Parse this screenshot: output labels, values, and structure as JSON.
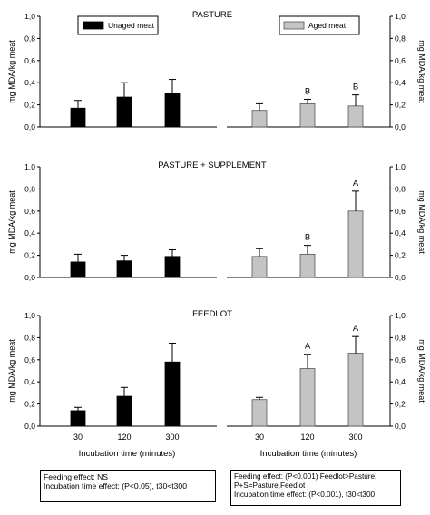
{
  "chart_data": {
    "type": "bar",
    "categories": [
      "30",
      "120",
      "300"
    ],
    "xlabel": "Incubation time (minutes)",
    "ylabel": "mg MDA/kg meat",
    "ylim": [
      0,
      1.0
    ],
    "yticks": [
      "0,0",
      "0,2",
      "0,4",
      "0,6",
      "0,8",
      "1,0"
    ],
    "legend": [
      {
        "name": "Unaged meat",
        "color": "#000000"
      },
      {
        "name": "Aged meat",
        "color": "#c4c4c4"
      }
    ],
    "panels": [
      {
        "title": "PASTURE",
        "unaged": {
          "values": [
            0.17,
            0.27,
            0.3
          ],
          "errors": [
            0.07,
            0.13,
            0.13
          ],
          "letters": [
            "",
            "",
            ""
          ]
        },
        "aged": {
          "values": [
            0.15,
            0.21,
            0.19
          ],
          "errors": [
            0.06,
            0.04,
            0.1
          ],
          "letters": [
            "",
            "B",
            "B"
          ]
        }
      },
      {
        "title": "PASTURE + SUPPLEMENT",
        "unaged": {
          "values": [
            0.14,
            0.15,
            0.19
          ],
          "errors": [
            0.07,
            0.05,
            0.06
          ],
          "letters": [
            "",
            "",
            ""
          ]
        },
        "aged": {
          "values": [
            0.19,
            0.21,
            0.6
          ],
          "errors": [
            0.07,
            0.08,
            0.18
          ],
          "letters": [
            "",
            "B",
            "A"
          ]
        }
      },
      {
        "title": "FEEDLOT",
        "unaged": {
          "values": [
            0.14,
            0.27,
            0.58
          ],
          "errors": [
            0.03,
            0.08,
            0.17
          ],
          "letters": [
            "",
            "",
            ""
          ]
        },
        "aged": {
          "values": [
            0.24,
            0.52,
            0.66
          ],
          "errors": [
            0.02,
            0.13,
            0.15
          ],
          "letters": [
            "",
            "A",
            "A"
          ]
        }
      }
    ]
  },
  "notes": {
    "unaged": [
      "Feeding effect: NS",
      "Incubation time effect: (P<0.05), t30<t300"
    ],
    "aged": [
      "Feeding effect: (P<0.001) Feedlot>Pasture;",
      "P+S=Pasture,Feedlot",
      "Incubation time effect: (P<0.001), t30<t300"
    ]
  }
}
